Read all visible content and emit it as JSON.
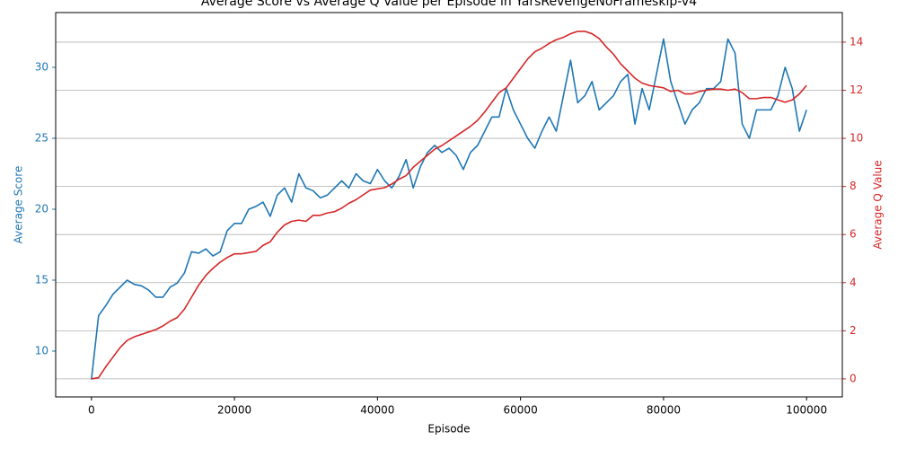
{
  "chart_data": {
    "type": "line",
    "title": "Average Score vs Average Q Value per Episode in YarsRevengeNoFrameskip-v4",
    "xlabel": "Episode",
    "ylabel": "Average Score",
    "y2label": "Average Q Value",
    "x": [
      0,
      1000,
      2000,
      3000,
      4000,
      5000,
      6000,
      7000,
      8000,
      9000,
      10000,
      11000,
      12000,
      13000,
      14000,
      15000,
      16000,
      17000,
      18000,
      19000,
      20000,
      21000,
      22000,
      23000,
      24000,
      25000,
      26000,
      27000,
      28000,
      29000,
      30000,
      31000,
      32000,
      33000,
      34000,
      35000,
      36000,
      37000,
      38000,
      39000,
      40000,
      41000,
      42000,
      43000,
      44000,
      45000,
      46000,
      47000,
      48000,
      49000,
      50000,
      51000,
      52000,
      53000,
      54000,
      55000,
      56000,
      57000,
      58000,
      59000,
      60000,
      61000,
      62000,
      63000,
      64000,
      65000,
      66000,
      67000,
      68000,
      69000,
      70000,
      71000,
      72000,
      73000,
      74000,
      75000,
      76000,
      77000,
      78000,
      79000,
      80000,
      81000,
      82000,
      83000,
      84000,
      85000,
      86000,
      87000,
      88000,
      89000,
      90000,
      91000,
      92000,
      93000,
      94000,
      95000,
      96000,
      97000,
      98000,
      99000,
      100000
    ],
    "series": [
      {
        "name": "Average Score",
        "color": "#1f77b4",
        "axis": "y",
        "values": [
          8,
          12.5,
          13.2,
          14,
          14.5,
          15,
          14.7,
          14.6,
          14.3,
          13.8,
          13.8,
          14.5,
          14.8,
          15.5,
          17,
          16.9,
          17.2,
          16.7,
          17,
          18.5,
          19,
          19,
          20,
          20.2,
          20.5,
          19.5,
          21,
          21.5,
          20.5,
          22.5,
          21.5,
          21.3,
          20.8,
          21,
          21.5,
          22,
          21.5,
          22.5,
          22,
          21.8,
          22.8,
          22,
          21.5,
          22.3,
          23.5,
          21.5,
          23,
          24,
          24.5,
          24,
          24.3,
          23.8,
          22.8,
          24,
          24.5,
          25.5,
          26.5,
          26.5,
          28.5,
          27,
          26,
          25,
          24.3,
          25.5,
          26.5,
          25.5,
          28,
          30.5,
          27.5,
          28,
          29,
          27,
          27.5,
          28,
          29,
          29.5,
          26,
          28.5,
          27,
          29.5,
          32,
          29,
          27.5,
          26,
          27,
          27.5,
          28.5,
          28.5,
          29,
          32,
          31,
          26,
          25,
          27,
          27,
          27,
          28,
          30,
          28.5,
          25.5,
          27
        ]
      },
      {
        "name": "Average Q Value",
        "color": "#d62728",
        "axis": "y2",
        "values": [
          0,
          0.05,
          0.5,
          0.9,
          1.3,
          1.6,
          1.75,
          1.85,
          1.95,
          2.05,
          2.2,
          2.4,
          2.55,
          2.9,
          3.4,
          3.9,
          4.3,
          4.6,
          4.85,
          5.05,
          5.2,
          5.2,
          5.25,
          5.3,
          5.55,
          5.7,
          6.1,
          6.4,
          6.55,
          6.6,
          6.55,
          6.8,
          6.8,
          6.9,
          6.95,
          7.1,
          7.3,
          7.45,
          7.65,
          7.85,
          7.9,
          7.95,
          8.1,
          8.3,
          8.45,
          8.8,
          9.05,
          9.3,
          9.55,
          9.7,
          9.9,
          10.1,
          10.3,
          10.5,
          10.75,
          11.1,
          11.5,
          11.9,
          12.1,
          12.5,
          12.9,
          13.3,
          13.6,
          13.75,
          13.95,
          14.1,
          14.2,
          14.35,
          14.45,
          14.45,
          14.35,
          14.15,
          13.8,
          13.5,
          13.1,
          12.8,
          12.5,
          12.3,
          12.2,
          12.15,
          12.1,
          11.95,
          12,
          11.85,
          11.85,
          11.95,
          12,
          12.05,
          12.05,
          12,
          12.05,
          11.9,
          11.65,
          11.65,
          11.7,
          11.7,
          11.6,
          11.5,
          11.6,
          11.85,
          12.2
        ]
      }
    ],
    "xlim": [
      -5000,
      105000
    ],
    "xticks": [
      0,
      20000,
      40000,
      60000,
      80000,
      100000
    ],
    "ylim": [
      6.77,
      33.86
    ],
    "yticks": [
      10,
      15,
      20,
      25,
      30
    ],
    "y2lim": [
      -0.75,
      15.23
    ],
    "y2ticks": [
      0,
      2,
      4,
      6,
      8,
      10,
      12,
      14
    ],
    "grid": "y2"
  }
}
